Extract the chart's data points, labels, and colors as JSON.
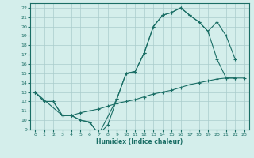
{
  "xlabel": "Humidex (Indice chaleur)",
  "background_color": "#d4eeeb",
  "grid_color": "#aacccc",
  "line_color": "#1a6e65",
  "xlim": [
    -0.5,
    23.5
  ],
  "ylim": [
    9,
    22.5
  ],
  "xticks": [
    0,
    1,
    2,
    3,
    4,
    5,
    6,
    7,
    8,
    9,
    10,
    11,
    12,
    13,
    14,
    15,
    16,
    17,
    18,
    19,
    20,
    21,
    22,
    23
  ],
  "yticks": [
    9,
    10,
    11,
    12,
    13,
    14,
    15,
    16,
    17,
    18,
    19,
    20,
    21,
    22
  ],
  "line1_x": [
    0,
    1,
    2,
    3,
    4,
    5,
    6,
    7,
    8,
    9,
    10,
    11,
    12,
    13,
    14,
    15,
    16,
    17,
    18,
    19,
    20,
    21,
    22
  ],
  "line1_y": [
    13,
    12,
    12,
    10.5,
    10.5,
    10,
    9.8,
    8.5,
    9.5,
    12.3,
    15,
    15.2,
    17.2,
    20,
    21.2,
    21.5,
    22,
    21.2,
    20.5,
    19.5,
    16.5,
    14.5,
    14.5
  ],
  "line2_x": [
    0,
    3,
    4,
    5,
    6,
    7,
    9,
    10,
    11,
    12,
    13,
    14,
    15,
    16,
    17,
    18,
    19,
    20,
    21,
    22
  ],
  "line2_y": [
    13,
    10.5,
    10.5,
    10,
    9.8,
    8.5,
    12.3,
    15,
    15.2,
    17.2,
    20,
    21.2,
    21.5,
    22,
    21.2,
    20.5,
    19.5,
    20.5,
    19,
    16.5
  ],
  "line3_x": [
    0,
    1,
    2,
    3,
    4,
    5,
    6,
    7,
    8,
    9,
    10,
    11,
    12,
    13,
    14,
    15,
    16,
    17,
    18,
    19,
    20,
    21,
    22,
    23
  ],
  "line3_y": [
    13,
    12,
    12,
    10.5,
    10.5,
    10.8,
    11,
    11.2,
    11.5,
    11.8,
    12,
    12.2,
    12.5,
    12.8,
    13,
    13.2,
    13.5,
    13.8,
    14,
    14.2,
    14.4,
    14.5,
    14.5,
    14.5
  ]
}
